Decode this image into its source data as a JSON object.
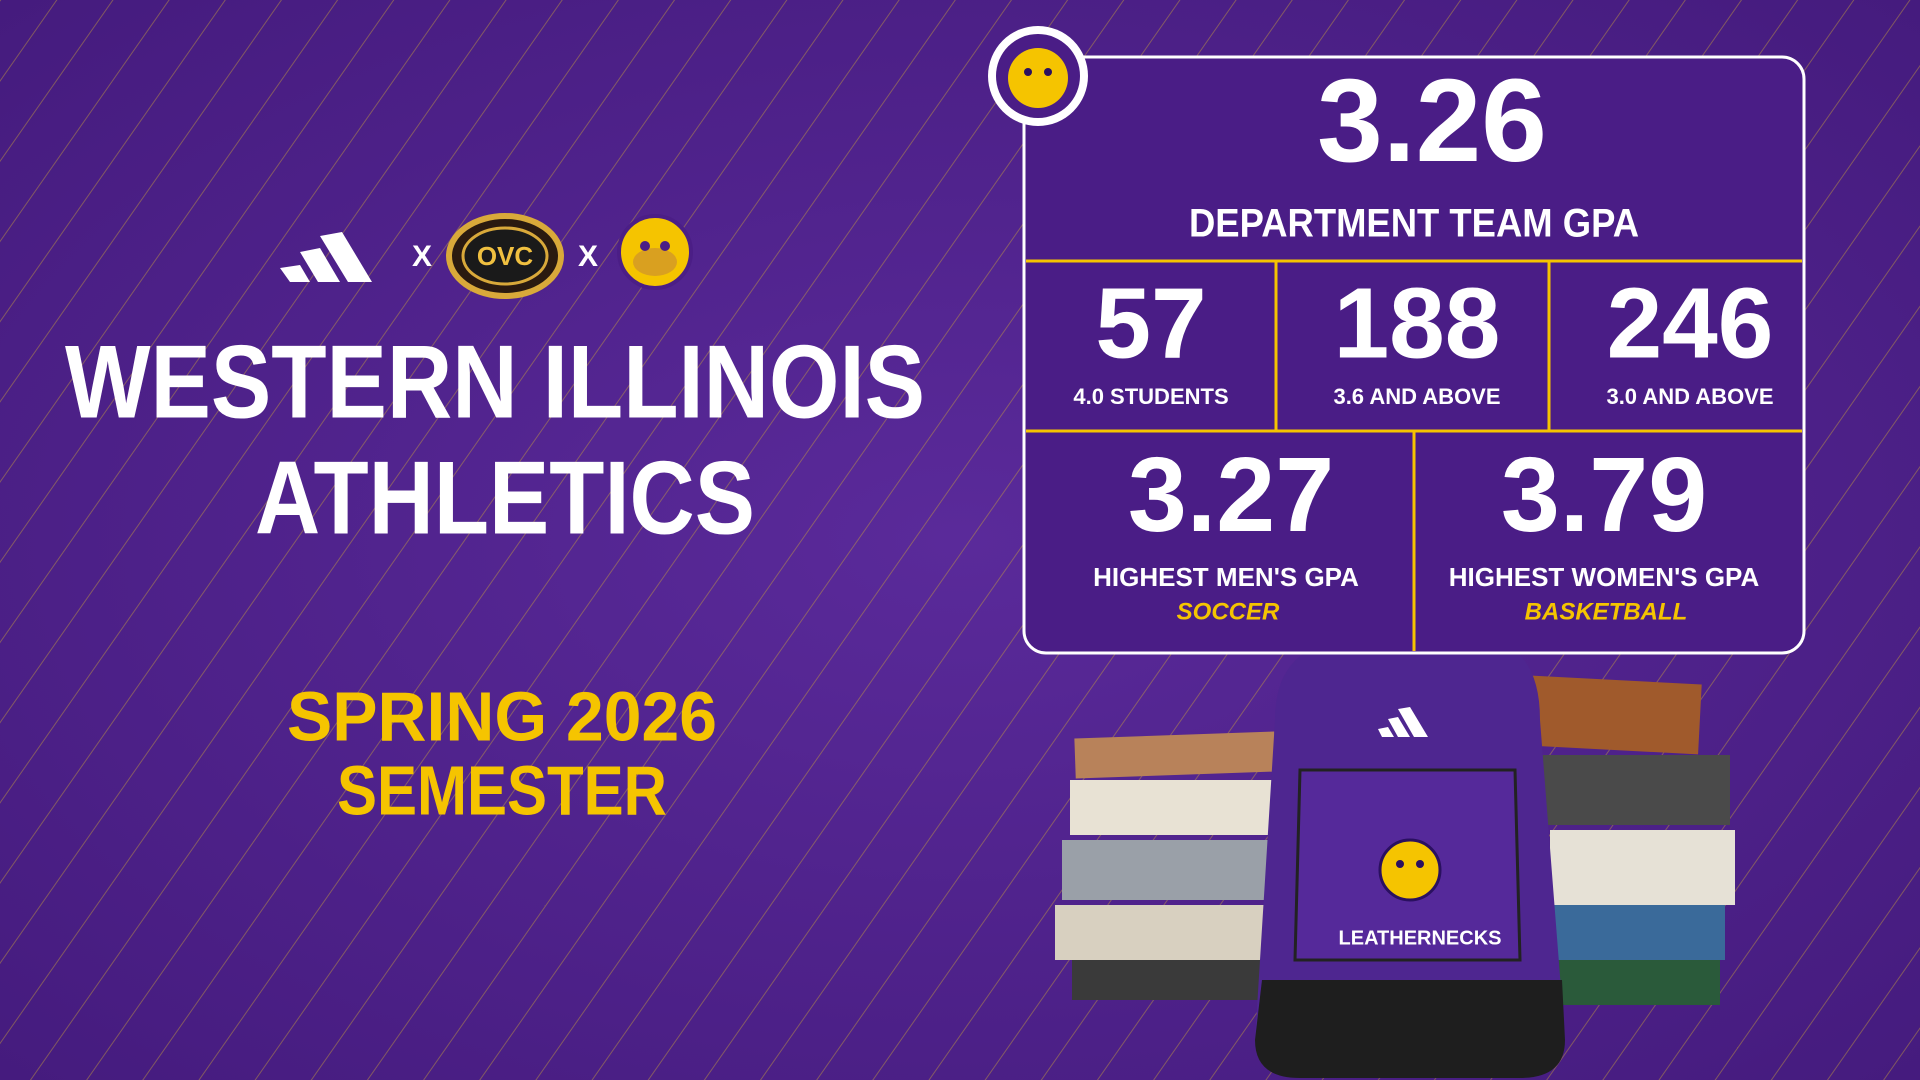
{
  "header": {
    "separator_1": "X",
    "conference_logo": "OVC",
    "separator_2": "X"
  },
  "title": {
    "line_1": "WESTERN ILLINOIS",
    "line_2": "ATHLETICS"
  },
  "semester": {
    "line_1": "SPRING 2026",
    "line_2": "SEMESTER"
  },
  "stats": {
    "main": {
      "value": "3.26",
      "label": "DEPARTMENT TEAM GPA"
    },
    "counts": [
      {
        "value": "57",
        "label": "4.0 STUDENTS"
      },
      {
        "value": "188",
        "label": "3.6 AND ABOVE"
      },
      {
        "value": "246",
        "label": "3.0 AND ABOVE"
      }
    ],
    "highest": [
      {
        "value": "3.27",
        "label": "HIGHEST MEN'S GPA",
        "sport": "SOCCER"
      },
      {
        "value": "3.79",
        "label": "HIGHEST WOMEN'S GPA",
        "sport": "BASKETBALL"
      }
    ]
  },
  "backpack": {
    "text": "LEATHERNECKS"
  }
}
